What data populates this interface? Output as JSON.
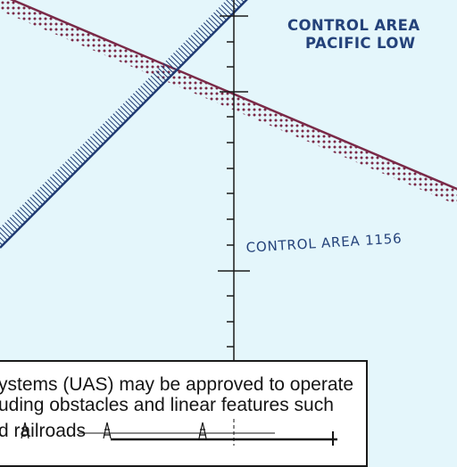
{
  "map": {
    "labels": {
      "pacific_low_line1": "CONTROL AREA",
      "pacific_low_line2": "PACIFIC LOW",
      "control_area_1156": "CONTROL AREA 1156"
    },
    "colors": {
      "background": "#e4f6fb",
      "label_blue": "#24427a",
      "restricted_boundary": "#7a2a48",
      "airway_boundary": "#1f3a72",
      "meridian": "#1a1a1a"
    }
  },
  "notice": {
    "line1": "ystems (UAS) may be approved to operate",
    "line2": "uding obstacles and linear features such",
    "line3": "d  railroads"
  }
}
